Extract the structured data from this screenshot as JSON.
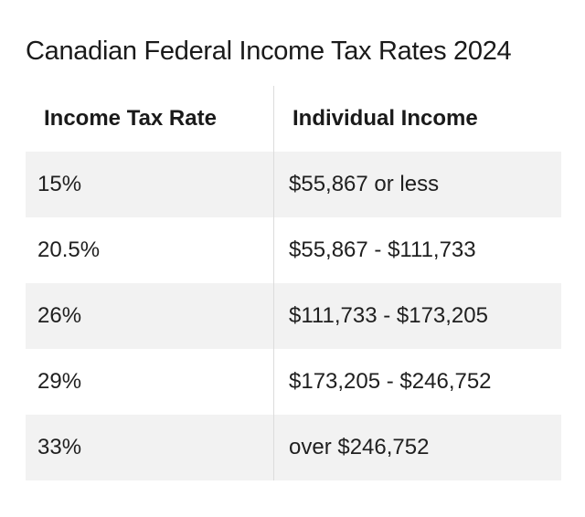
{
  "title": "Canadian Federal Income Tax Rates 2024",
  "table": {
    "headers": {
      "rate": "Income Tax Rate",
      "income": "Individual Income"
    },
    "rows": [
      {
        "rate": "15%",
        "income": "$55,867 or less"
      },
      {
        "rate": "20.5%",
        "income": "$55,867 - $111,733"
      },
      {
        "rate": "26%",
        "income": "$111,733 - $173,205"
      },
      {
        "rate": "29%",
        "income": "$173,205 - $246,752"
      },
      {
        "rate": "33%",
        "income": "over $246,752"
      }
    ]
  },
  "colors": {
    "row_shade": "#f2f2f2",
    "divider": "#dcdcdc",
    "text": "#1f1f1f"
  }
}
